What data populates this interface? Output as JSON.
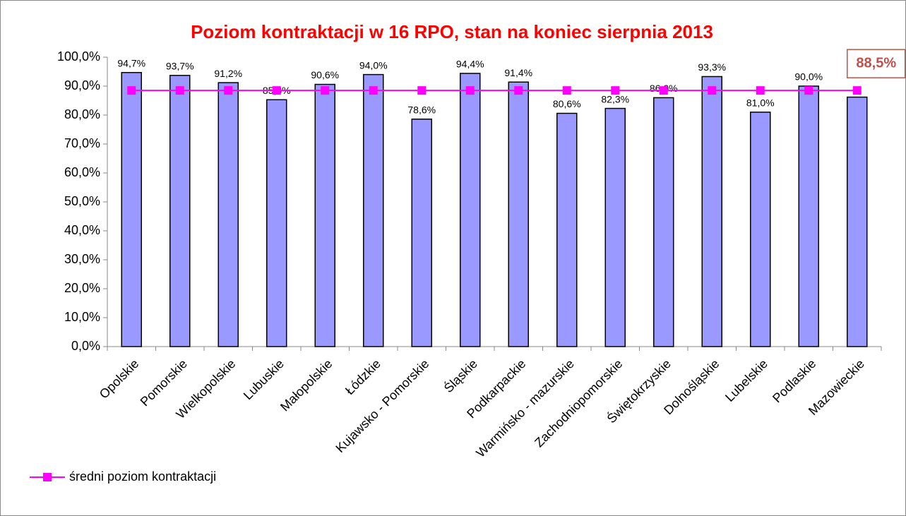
{
  "chart_data": {
    "type": "bar",
    "title": "Poziom kontraktacji w 16 RPO, stan na koniec sierpnia 2013",
    "categories": [
      "Opolskie",
      "Pomorskie",
      "Wielkopolskie",
      "Lubuskie",
      "Małopolskie",
      "Łódzkie",
      "Kujawsko - Pomorskie",
      "Śląskie",
      "Podkarpackie",
      "Warmińsko - mazurskie",
      "Zachodniopomorskie",
      "Świętokrzyskie",
      "Dolnośląskie",
      "Lubelskie",
      "Podlaskie",
      "Mazowieckie"
    ],
    "series": [
      {
        "color": "#9999ff",
        "values": [
          94.7,
          93.7,
          91.2,
          85.3,
          90.6,
          94.0,
          78.6,
          94.4,
          91.4,
          80.6,
          82.3,
          86.0,
          93.3,
          81.0,
          90.0,
          86.2
        ],
        "value_labels": [
          "94,7%",
          "93,7%",
          "91,2%",
          "85,3%",
          "90,6%",
          "94,0%",
          "78,6%",
          "94,4%",
          "91,4%",
          "80,6%",
          "82,3%",
          "86,0%",
          "93,3%",
          "81,0%",
          "90,0%",
          null
        ]
      },
      {
        "name": "średni poziom kontraktacji",
        "type": "line",
        "color": "#ff00ff",
        "values": [
          88.5,
          88.5,
          88.5,
          88.5,
          88.5,
          88.5,
          88.5,
          88.5,
          88.5,
          88.5,
          88.5,
          88.5,
          88.5,
          88.5,
          88.5,
          88.5
        ],
        "value_labels": [
          null,
          null,
          null,
          null,
          null,
          null,
          null,
          null,
          null,
          null,
          null,
          null,
          null,
          null,
          null,
          "88,5%"
        ]
      }
    ],
    "ylim": [
      0,
      100
    ],
    "yticks": [
      {
        "value": 0,
        "label": "0,0%"
      },
      {
        "value": 10,
        "label": "10,0%"
      },
      {
        "value": 20,
        "label": "20,0%"
      },
      {
        "value": 30,
        "label": "30,0%"
      },
      {
        "value": 40,
        "label": "40,0%"
      },
      {
        "value": 50,
        "label": "50,0%"
      },
      {
        "value": 60,
        "label": "60,0%"
      },
      {
        "value": 70,
        "label": "70,0%"
      },
      {
        "value": 80,
        "label": "80,0%"
      },
      {
        "value": 90,
        "label": "90,0%"
      },
      {
        "value": 100,
        "label": "100,0%"
      }
    ],
    "grid": false,
    "legend": "bottom-left"
  }
}
